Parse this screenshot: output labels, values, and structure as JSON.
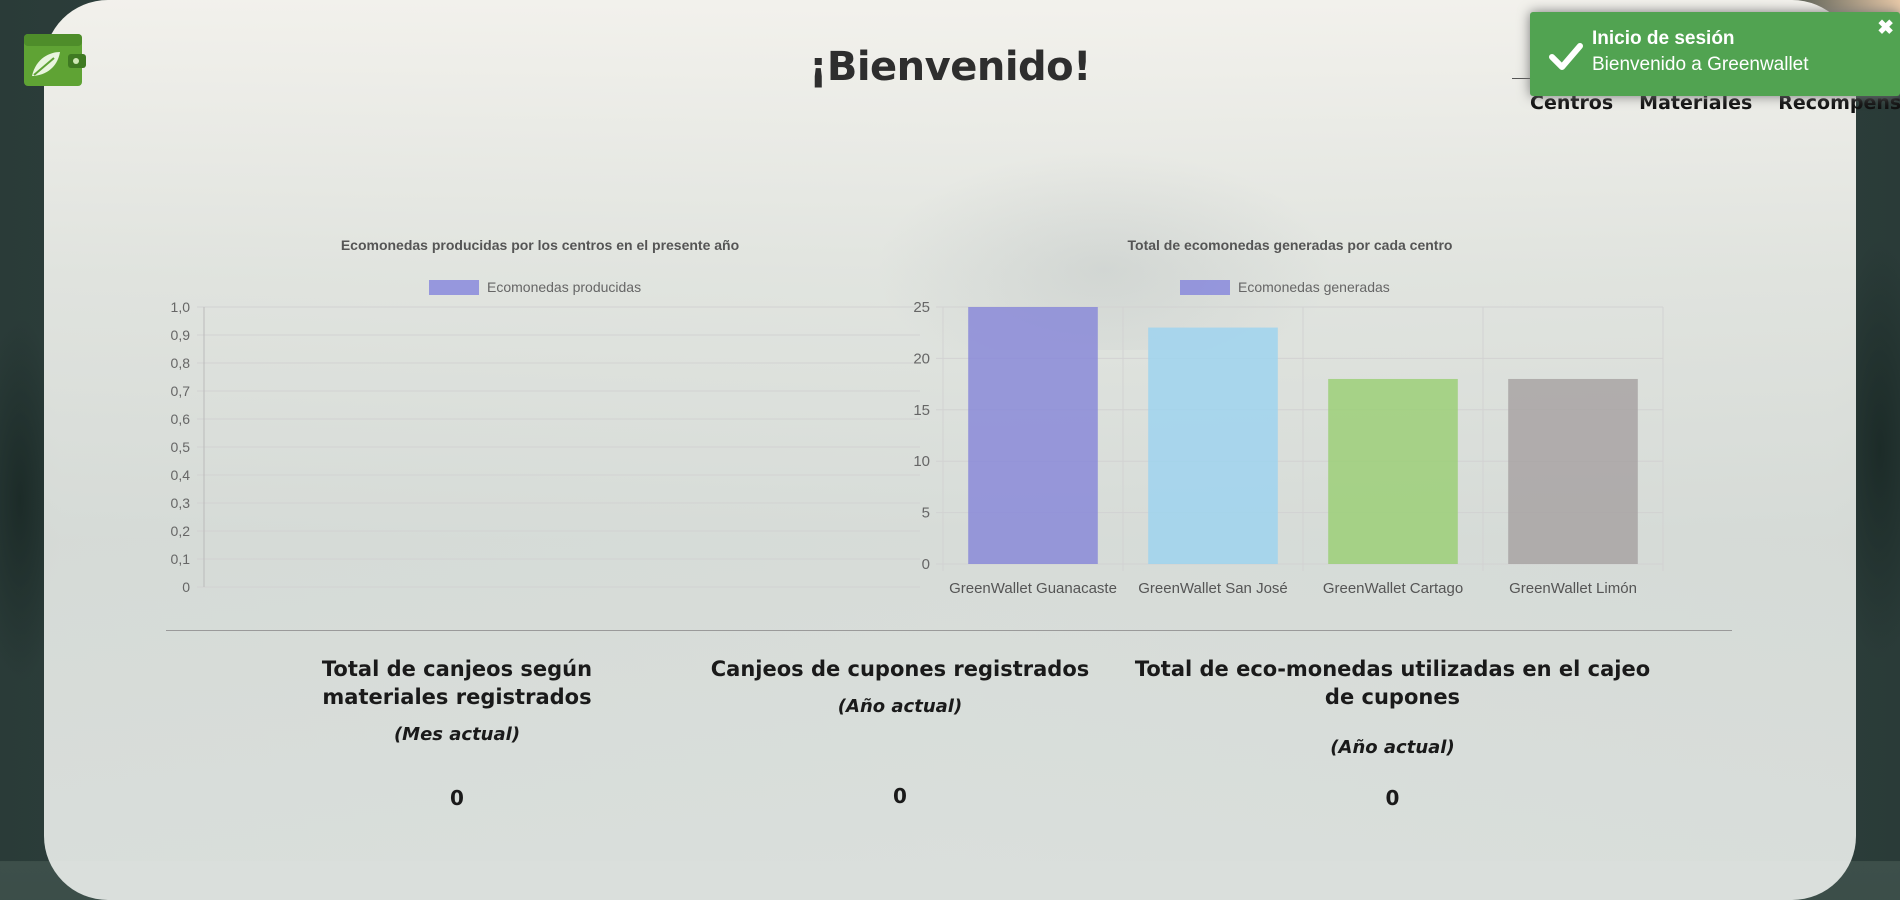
{
  "header": {
    "title": "¡Bienvenido!",
    "logo_icon": "wallet-leaf-icon"
  },
  "nav": {
    "items": [
      "Centros",
      "Materiales",
      "Recompensas"
    ]
  },
  "toast": {
    "title": "Inicio de sesión",
    "message": "Bienvenido a Greenwallet",
    "close": "✖",
    "icon": "check-icon",
    "color": "#51a351"
  },
  "chart_data": [
    {
      "type": "bar",
      "title": "Ecomonedas producidas por  los centros en el presente año",
      "legend": "Ecomonedas producidas",
      "categories": [],
      "series": [
        {
          "name": "Ecomonedas producidas",
          "values": []
        }
      ],
      "yticks": [
        "1,0",
        "0,9",
        "0,8",
        "0,7",
        "0,6",
        "0,5",
        "0,4",
        "0,3",
        "0,2",
        "0,1",
        "0"
      ],
      "ylim": [
        0,
        1
      ],
      "grid": true,
      "legend_position": "top"
    },
    {
      "type": "bar",
      "title": "Total de ecomonedas generadas por cada centro",
      "legend": "Ecomonedas generadas",
      "categories": [
        "GreenWallet Guanacaste",
        "GreenWallet San José",
        "GreenWallet Cartago",
        "GreenWallet Limón"
      ],
      "series": [
        {
          "name": "Ecomonedas generadas",
          "values": [
            25,
            23,
            18,
            18
          ]
        }
      ],
      "colors": [
        "#8a8ad8",
        "#9fd3ee",
        "#9ccf78",
        "#a8a3a3"
      ],
      "yticks": [
        "25",
        "20",
        "15",
        "10",
        "5",
        "0"
      ],
      "ylim": [
        0,
        25
      ],
      "grid": true,
      "legend_position": "top"
    }
  ],
  "stats": [
    {
      "title": "Total de canjeos según materiales registrados",
      "subtitle": "(Mes actual)",
      "value": "0"
    },
    {
      "title": "Canjeos de cupones registrados",
      "subtitle": "(Año actual)",
      "value": "0"
    },
    {
      "title": "Total de eco-monedas utilizadas en el cajeo de cupones",
      "subtitle": "(Año actual)",
      "value": "0"
    }
  ]
}
